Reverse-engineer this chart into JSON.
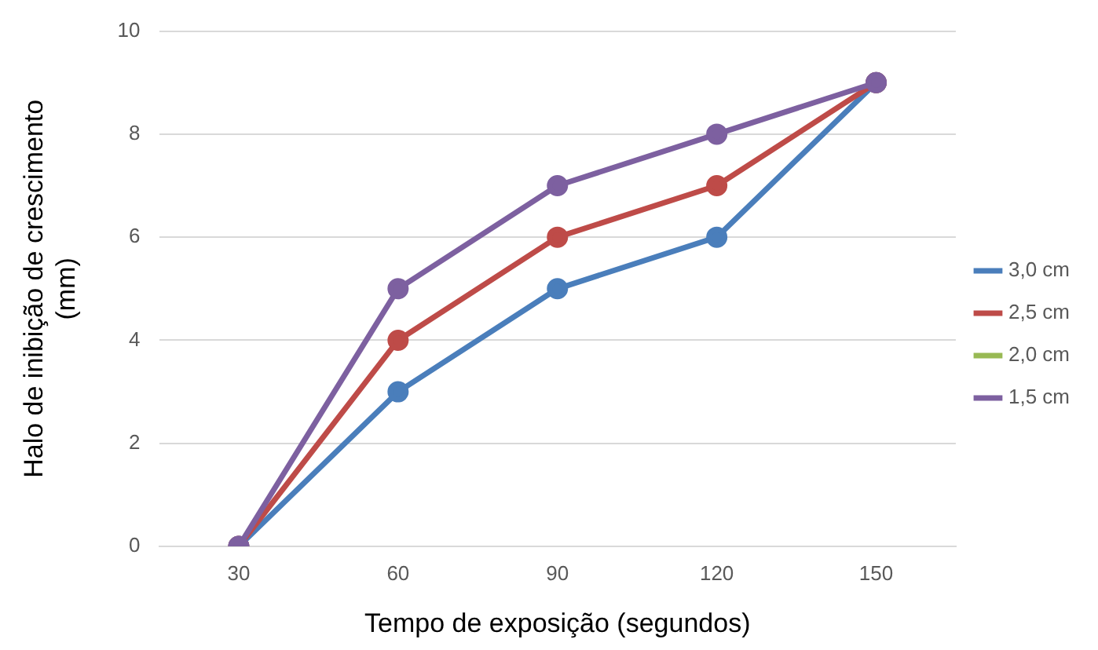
{
  "chart_data": {
    "type": "line",
    "xlabel": "Tempo de exposição (segundos)",
    "ylabel": "Halo de inibição de crescimento\n(mm)",
    "categories": [
      "30",
      "60",
      "90",
      "120",
      "150"
    ],
    "series": [
      {
        "name": "3,0 cm",
        "color": "#4a7ebb",
        "values": [
          0,
          3,
          5,
          6,
          9
        ]
      },
      {
        "name": "2,5 cm",
        "color": "#be4b48",
        "values": [
          0,
          4,
          6,
          7,
          9
        ]
      },
      {
        "name": "2,0 cm",
        "color": "#98b954",
        "values": [
          null,
          null,
          null,
          null,
          null
        ]
      },
      {
        "name": "1,5 cm",
        "color": "#7d60a0",
        "values": [
          0,
          5,
          7,
          8,
          9
        ]
      }
    ],
    "ylim": [
      0,
      10
    ],
    "yticks": [
      0,
      2,
      4,
      6,
      8,
      10
    ],
    "grid": "y",
    "legend": "right",
    "marker": "circle",
    "line_style": "solid"
  }
}
